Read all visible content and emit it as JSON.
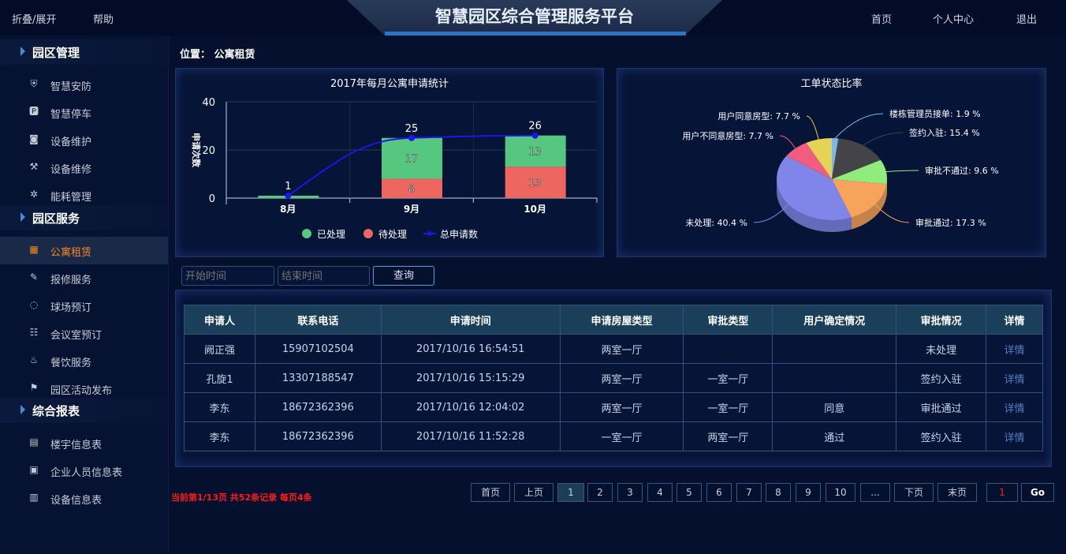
{
  "header": {
    "toggle": "折叠/展开",
    "help": "帮助",
    "title": "智慧园区综合管理服务平台",
    "nav": [
      "首页",
      "个人中心",
      "退出"
    ]
  },
  "sidebar": [
    {
      "section": "园区管理",
      "items": [
        {
          "label": "智慧安防",
          "icon": "shield-icon",
          "glyph": "⛨"
        },
        {
          "label": "智慧停车",
          "icon": "parking-icon",
          "glyph": "🅿"
        },
        {
          "label": "设备维护",
          "icon": "camera-icon",
          "glyph": "◙"
        },
        {
          "label": "设备维修",
          "icon": "wrench-icon",
          "glyph": "⚒"
        },
        {
          "label": "能耗管理",
          "icon": "gear-icon",
          "glyph": "✲"
        }
      ]
    },
    {
      "section": "园区服务",
      "items": [
        {
          "label": "公寓租赁",
          "icon": "building-icon",
          "glyph": "▦",
          "active": true
        },
        {
          "label": "报修服务",
          "icon": "edit-icon",
          "glyph": "✎"
        },
        {
          "label": "球场预订",
          "icon": "ball-icon",
          "glyph": "◌"
        },
        {
          "label": "会议室预订",
          "icon": "meeting-icon",
          "glyph": "☷"
        },
        {
          "label": "餐饮服务",
          "icon": "dining-icon",
          "glyph": "♨"
        },
        {
          "label": "园区活动发布",
          "icon": "flag-icon",
          "glyph": "⚑"
        }
      ]
    },
    {
      "section": "综合报表",
      "items": [
        {
          "label": "楼宇信息表",
          "icon": "building-table-icon",
          "glyph": "▤"
        },
        {
          "label": "企业人员信息表",
          "icon": "clipboard-icon",
          "glyph": "▣"
        },
        {
          "label": "设备信息表",
          "icon": "device-table-icon",
          "glyph": "▥"
        }
      ]
    }
  ],
  "location": {
    "label": "位置：",
    "value": "公寓租赁"
  },
  "chart_data": [
    {
      "type": "bar",
      "title": "2017年每月公寓申请统计",
      "ylabel": "申请次数",
      "categories": [
        "8月",
        "9月",
        "10月"
      ],
      "ylim": [
        0,
        40
      ],
      "yticks": [
        0,
        20,
        40
      ],
      "grid": true,
      "legend": "bottom",
      "series": [
        {
          "name": "已处理",
          "color": "#55c77f",
          "values": [
            1,
            17,
            13
          ]
        },
        {
          "name": "待处理",
          "color": "#ee6660",
          "values": [
            0,
            8,
            13
          ]
        },
        {
          "name": "总申请数",
          "type": "line",
          "color": "#1a16e8",
          "values": [
            1,
            25,
            26
          ]
        }
      ]
    },
    {
      "type": "pie",
      "title": "工单状态比率",
      "legend": "none",
      "slices": [
        {
          "name": "楼栋管理员接单",
          "value": 1.9,
          "color": "#7cb5ec"
        },
        {
          "name": "签约入驻",
          "value": 15.4,
          "color": "#434348"
        },
        {
          "name": "审批不通过",
          "value": 9.6,
          "color": "#90ed7d"
        },
        {
          "name": "审批通过",
          "value": 17.3,
          "color": "#f7a35c"
        },
        {
          "name": "未处理",
          "value": 40.4,
          "color": "#8085e9"
        },
        {
          "name": "用户不同意房型",
          "value": 7.7,
          "color": "#f15c80"
        },
        {
          "name": "用户同意房型",
          "value": 7.7,
          "color": "#e4d354"
        }
      ]
    }
  ],
  "search": {
    "start_placeholder": "开始时间",
    "end_placeholder": "结束时间",
    "query": "查询"
  },
  "table": {
    "headers": [
      "申请人",
      "联系电话",
      "申请时间",
      "申请房屋类型",
      "审批类型",
      "用户确定情况",
      "审批情况",
      "详情"
    ],
    "rows": [
      [
        "阙正强",
        "15907102504",
        "2017/10/16 16:54:51",
        "两室一厅",
        "",
        "",
        "未处理",
        "详情"
      ],
      [
        "孔旋1",
        "13307188547",
        "2017/10/16 15:15:29",
        "两室一厅",
        "一室一厅",
        "",
        "签约入驻",
        "详情"
      ],
      [
        "李东",
        "18672362396",
        "2017/10/16 12:04:02",
        "两室一厅",
        "一室一厅",
        "同意",
        "审批通过",
        "详情"
      ],
      [
        "李东",
        "18672362396",
        "2017/10/16 11:52:28",
        "一室一厅",
        "两室一厅",
        "通过",
        "签约入驻",
        "详情"
      ]
    ]
  },
  "pagination": {
    "info": "当前第1/13页 共52条记录 每页4条",
    "buttons": [
      "首页",
      "上页",
      "1",
      "2",
      "3",
      "4",
      "5",
      "6",
      "7",
      "8",
      "9",
      "10",
      "...",
      "下页",
      "末页"
    ],
    "current": "1",
    "jump_value": "1",
    "go": "Go"
  }
}
